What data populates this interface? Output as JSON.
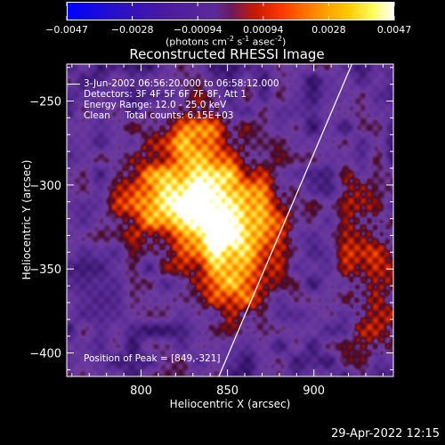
{
  "chart_data": {
    "type": "heatmap",
    "title": "Reconstructed RHESSI Image",
    "xlabel": "Heliocentric X (arcsec)",
    "ylabel": "Heliocentric Y (arcsec)",
    "xlim": [
      757,
      946
    ],
    "ylim": [
      -414,
      -228
    ],
    "x_ticks": [
      800,
      850,
      900
    ],
    "y_ticks": [
      -400,
      -350,
      -300,
      -250
    ],
    "colorbar": {
      "range": [
        -0.0047,
        0.0047
      ],
      "tick_labels": [
        "-0.0047",
        "-0.0028",
        "-0.00094",
        "0.00094",
        "0.0028",
        "0.0047"
      ],
      "unit_label": "(photons cm",
      "unit_exp1": "-2",
      "unit_mid": " s",
      "unit_exp2": "-1",
      "unit_mid2": " asec",
      "unit_exp3": "-2",
      "unit_end": ")",
      "colors": [
        "#0000ff",
        "#3a0fa8",
        "#5c2aa0",
        "#ff2a00",
        "#ff9a00",
        "#ffff30",
        "#ffffff"
      ]
    },
    "annotations": {
      "time_range": "3-Jun-2002 06:56:20.000 to 06:58:12.000",
      "detectors": "Detectors: 3F 4F 5F 6F 7F 8F, Att 1",
      "energy": "Energy Range: 12.0 - 25.0 keV",
      "clean": "Clean     Total counts: 6.15E+03",
      "peak": "Position of Peak = [849,-321]"
    },
    "peak": {
      "x": 849,
      "y": -321
    },
    "limb_line": [
      [
        845,
        -414
      ],
      [
        922,
        -228
      ]
    ],
    "sources": [
      {
        "x": 849,
        "y": -321,
        "sx": 22,
        "sy": 20,
        "amp": 1.0
      },
      {
        "x": 825,
        "y": -300,
        "sx": 20,
        "sy": 22,
        "amp": 0.55
      },
      {
        "x": 835,
        "y": -270,
        "sx": 14,
        "sy": 14,
        "amp": 0.45
      },
      {
        "x": 855,
        "y": -360,
        "sx": 14,
        "sy": 18,
        "amp": 0.45
      },
      {
        "x": 800,
        "y": -310,
        "sx": 12,
        "sy": 14,
        "amp": 0.35
      },
      {
        "x": 930,
        "y": -340,
        "sx": 12,
        "sy": 20,
        "amp": 0.4
      },
      {
        "x": 935,
        "y": -385,
        "sx": 10,
        "sy": 16,
        "amp": 0.35
      },
      {
        "x": 925,
        "y": -300,
        "sx": 8,
        "sy": 10,
        "amp": 0.25
      }
    ]
  },
  "footer": {
    "timestamp": "29-Apr-2022 12:15"
  }
}
